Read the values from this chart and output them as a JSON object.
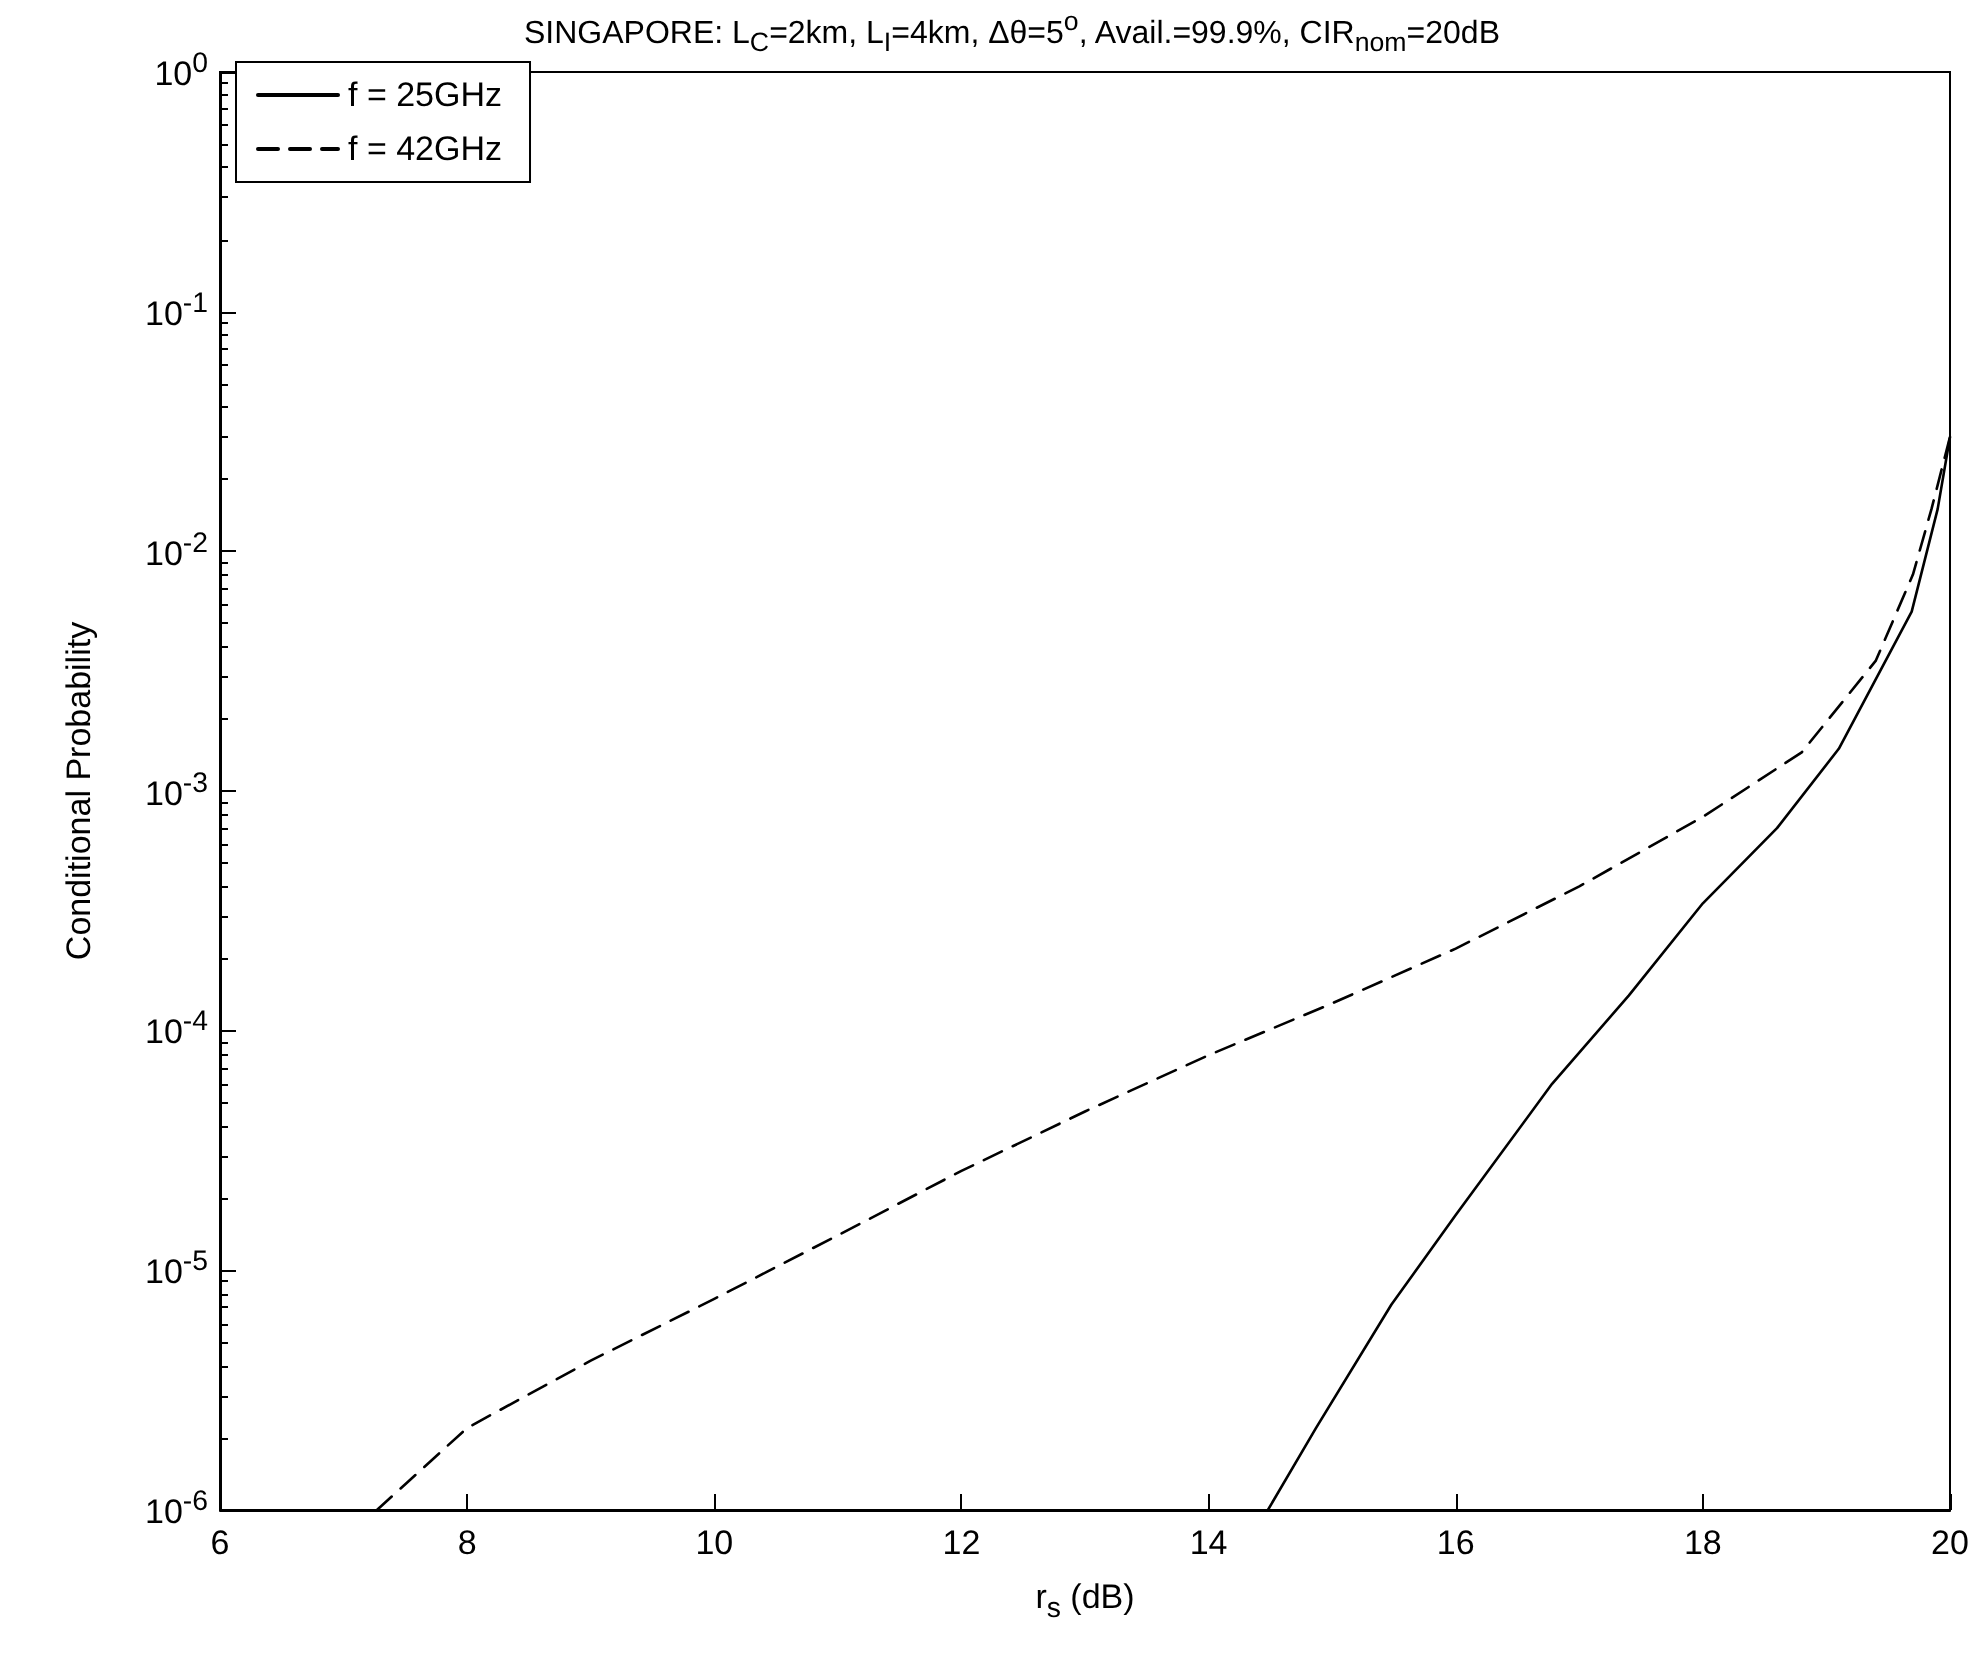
{
  "chart_data": {
    "type": "line",
    "title": "SINGAPORE: L$_{C}$=2km, L$_{I}$=4km, Δθ=5$^{o}$, Avail.=99.9%, CIR$_{nom}$=20dB",
    "xlabel": "r$_{s}$ (dB)",
    "ylabel": "Conditional Probability",
    "log": "y",
    "xlim": [
      6,
      20
    ],
    "xticks": [
      6,
      8,
      10,
      12,
      14,
      16,
      18,
      20
    ],
    "ylim": [
      1e-06,
      1
    ],
    "yticks": [
      {
        "value": 1e-06,
        "label": "10$^{-6}$"
      },
      {
        "value": 1e-05,
        "label": "10$^{-5}$"
      },
      {
        "value": 0.0001,
        "label": "10$^{-4}$"
      },
      {
        "value": 0.001,
        "label": "10$^{-3}$"
      },
      {
        "value": 0.01,
        "label": "10$^{-2}$"
      },
      {
        "value": 0.1,
        "label": "10$^{-1}$"
      },
      {
        "value": 1,
        "label": "10$^{0}$"
      }
    ],
    "grid": false,
    "legend": "top left",
    "marker": "none",
    "series": [
      {
        "name": "f = 25GHz",
        "color": "#000000",
        "line_style": "solid",
        "x": [
          14.48,
          14.87,
          15.48,
          16,
          16.78,
          17.4,
          18,
          18.6,
          19.1,
          19.69,
          19.9,
          20
        ],
        "values": [
          1e-06,
          2.2e-06,
          7.2e-06,
          1.7e-05,
          6e-05,
          0.00014,
          0.00034,
          0.0007,
          0.0015,
          0.0056,
          0.015,
          0.03
        ]
      },
      {
        "name": "f = 42GHz",
        "color": "#000000",
        "line_style": "dashed",
        "x": [
          7.27,
          8,
          9,
          10,
          11,
          12,
          13,
          14,
          15,
          16,
          17,
          18,
          18.8,
          19.4,
          19.7,
          19.85,
          20
        ],
        "values": [
          1e-06,
          2.2e-06,
          4.2e-06,
          7.6e-06,
          1.4e-05,
          2.6e-05,
          4.6e-05,
          7.9e-05,
          0.00013,
          0.00022,
          0.0004,
          0.00078,
          0.00145,
          0.0035,
          0.008,
          0.015,
          0.03
        ]
      }
    ]
  }
}
